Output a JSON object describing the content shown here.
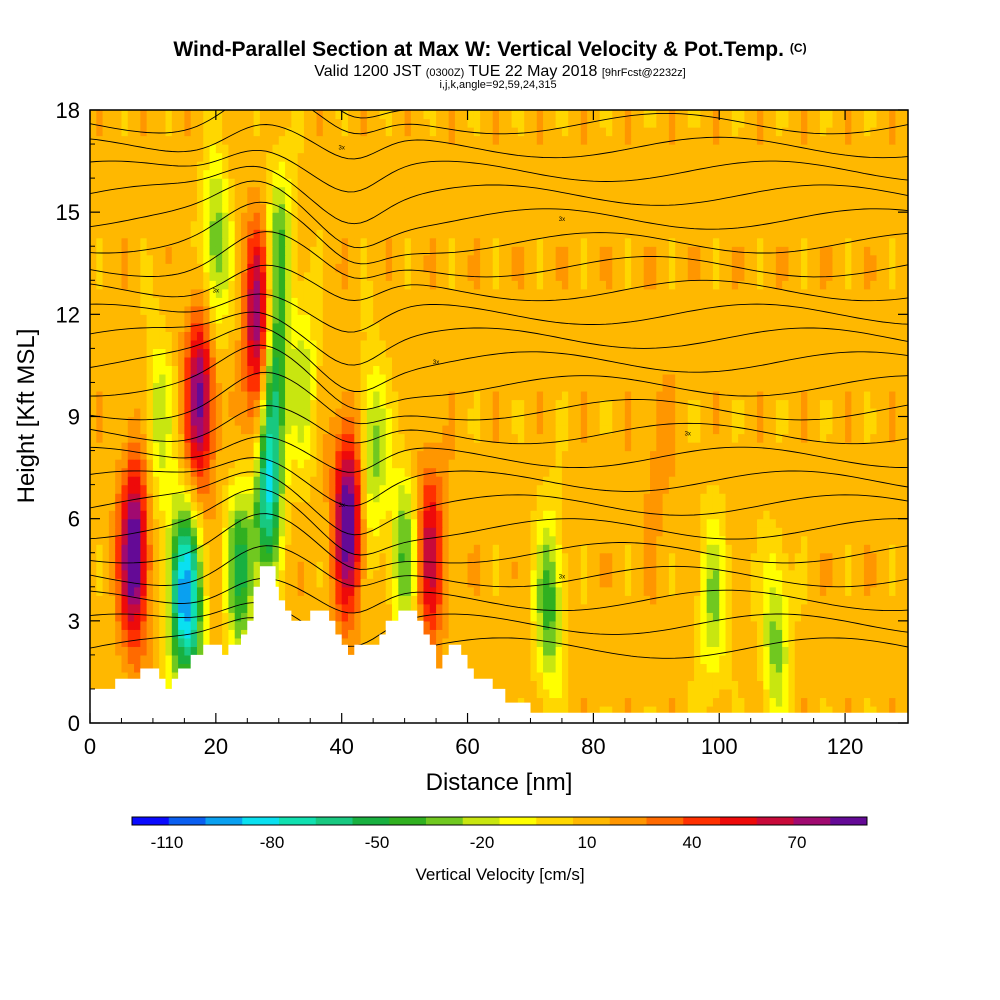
{
  "chart_data": {
    "type": "heatmap",
    "title": "Wind-Parallel Section at Max W: Vertical Velocity & Pot.Temp.",
    "title_mark": "(C)",
    "subtitle_prefix": "Valid 1200 JST",
    "subtitle_utc": "(0300Z)",
    "subtitle_date": "TUE 22 May 2018",
    "subtitle_fcst": "[9hrFcst@2232z]",
    "indices": "i,j,k,angle=92,59,24,315",
    "xlabel": "Distance [nm]",
    "ylabel": "Height [Kft MSL]",
    "xlim": [
      0,
      130
    ],
    "ylim": [
      0,
      18
    ],
    "x_ticks": [
      "0",
      "20",
      "40",
      "60",
      "80",
      "100",
      "120"
    ],
    "y_ticks": [
      "0",
      "3",
      "6",
      "9",
      "12",
      "15",
      "18"
    ],
    "colorbar": {
      "label": "Vertical Velocity [cm/s]",
      "min": -120,
      "max": 90,
      "step": 10,
      "ticks": [
        "-110",
        "-80",
        "-50",
        "-20",
        "10",
        "40",
        "70"
      ],
      "colors": [
        "#0a0aff",
        "#0a5ef0",
        "#0aa0f0",
        "#0ae0f0",
        "#10e0b0",
        "#18c880",
        "#18b040",
        "#30b020",
        "#70c820",
        "#c8e610",
        "#ffff00",
        "#ffd700",
        "#ffb800",
        "#ff9600",
        "#ff6a00",
        "#ff3000",
        "#ee0a0a",
        "#c80a3a",
        "#a00a70",
        "#640a96"
      ]
    },
    "background_velocity_cm_s": 5,
    "velocity_features": [
      {
        "x": 7,
        "y": 5.0,
        "w": 80
      },
      {
        "x": 17.5,
        "y": 9.5,
        "w": 70
      },
      {
        "x": 27,
        "y": 12.0,
        "w": 70
      },
      {
        "x": 27,
        "y": 8.5,
        "w": 50
      },
      {
        "x": 41,
        "y": 6.0,
        "w": 80
      },
      {
        "x": 54,
        "y": 5.0,
        "w": 50
      },
      {
        "x": 14,
        "y": 4.0,
        "w": -55
      },
      {
        "x": 16,
        "y": 3.5,
        "w": -70
      },
      {
        "x": 20,
        "y": 14.0,
        "w": -45
      },
      {
        "x": 24,
        "y": 4.5,
        "w": -60
      },
      {
        "x": 28,
        "y": 7.0,
        "w": -100
      },
      {
        "x": 29,
        "y": 10.0,
        "w": -70
      },
      {
        "x": 30,
        "y": 14.0,
        "w": -45
      },
      {
        "x": 34,
        "y": 10.0,
        "w": -30
      },
      {
        "x": 45,
        "y": 8.0,
        "w": -40
      },
      {
        "x": 50,
        "y": 5.0,
        "w": -45
      },
      {
        "x": 73,
        "y": 3.5,
        "w": -50
      },
      {
        "x": 99,
        "y": 3.5,
        "w": -35
      },
      {
        "x": 109,
        "y": 2.5,
        "w": -40
      },
      {
        "x": 11,
        "y": 9.0,
        "w": -30
      },
      {
        "x": 90,
        "y": 8.0,
        "w": 10
      }
    ],
    "potential_temperature": {
      "contour_base_level": 300,
      "contour_interval": 2,
      "contour_count": 24,
      "label_text": "3x",
      "label_x": [
        20,
        40,
        55,
        75,
        95
      ]
    },
    "terrain_kft": [
      [
        0,
        1.0
      ],
      [
        4,
        1.0
      ],
      [
        4,
        1.3
      ],
      [
        8,
        1.3
      ],
      [
        8,
        1.6
      ],
      [
        11,
        1.6
      ],
      [
        11,
        1.3
      ],
      [
        12,
        1.3
      ],
      [
        12,
        1.0
      ],
      [
        13,
        1.0
      ],
      [
        13,
        1.3
      ],
      [
        14,
        1.3
      ],
      [
        14,
        1.6
      ],
      [
        16,
        1.6
      ],
      [
        16,
        2.0
      ],
      [
        18,
        2.0
      ],
      [
        18,
        2.3
      ],
      [
        21,
        2.3
      ],
      [
        21,
        2.0
      ],
      [
        22,
        2.0
      ],
      [
        22,
        2.3
      ],
      [
        24,
        2.3
      ],
      [
        24,
        2.6
      ],
      [
        25,
        2.6
      ],
      [
        25,
        3.0
      ],
      [
        26,
        3.0
      ],
      [
        26,
        4.0
      ],
      [
        27,
        4.0
      ],
      [
        27,
        4.6
      ],
      [
        29.5,
        4.6
      ],
      [
        29.5,
        4.0
      ],
      [
        30,
        4.0
      ],
      [
        30,
        3.6
      ],
      [
        31,
        3.6
      ],
      [
        31,
        3.3
      ],
      [
        32,
        3.3
      ],
      [
        32,
        3.0
      ],
      [
        35,
        3.0
      ],
      [
        35,
        3.3
      ],
      [
        38,
        3.3
      ],
      [
        38,
        3.0
      ],
      [
        39,
        3.0
      ],
      [
        39,
        2.6
      ],
      [
        40,
        2.6
      ],
      [
        40,
        2.3
      ],
      [
        41,
        2.3
      ],
      [
        41,
        2.0
      ],
      [
        42,
        2.0
      ],
      [
        42,
        2.3
      ],
      [
        46,
        2.3
      ],
      [
        46,
        2.6
      ],
      [
        47,
        2.6
      ],
      [
        47,
        3.0
      ],
      [
        49,
        3.0
      ],
      [
        49,
        3.3
      ],
      [
        52,
        3.3
      ],
      [
        52,
        3.0
      ],
      [
        53,
        3.0
      ],
      [
        53,
        2.6
      ],
      [
        54,
        2.6
      ],
      [
        54,
        2.3
      ],
      [
        55,
        2.3
      ],
      [
        55,
        1.6
      ],
      [
        56,
        1.6
      ],
      [
        56,
        2.0
      ],
      [
        57,
        2.0
      ],
      [
        57,
        2.3
      ],
      [
        59,
        2.3
      ],
      [
        59,
        2.0
      ],
      [
        60,
        2.0
      ],
      [
        60,
        1.6
      ],
      [
        61,
        1.6
      ],
      [
        61,
        1.3
      ],
      [
        64,
        1.3
      ],
      [
        64,
        1.0
      ],
      [
        66,
        1.0
      ],
      [
        66,
        0.6
      ],
      [
        70,
        0.6
      ],
      [
        70,
        0.3
      ],
      [
        130,
        0.3
      ]
    ]
  }
}
